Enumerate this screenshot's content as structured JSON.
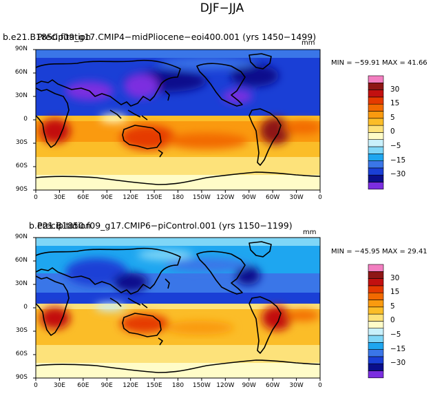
{
  "figure": {
    "title": "DJF−JJA",
    "lat_ticks": [
      "90N",
      "60N",
      "30N",
      "0",
      "30S",
      "60S",
      "90S"
    ],
    "lon_ticks": [
      "0",
      "30E",
      "60E",
      "90E",
      "120E",
      "150E",
      "180",
      "150W",
      "120W",
      "90W",
      "60W",
      "30W",
      "0"
    ],
    "colorbar_labels": [
      "30",
      "15",
      "5",
      "0",
      "−5",
      "−15",
      "−30"
    ],
    "colors": {
      "levels": [
        "#7b2ee0",
        "#0a0f8c",
        "#1a3fd6",
        "#3a76e8",
        "#1ea6f0",
        "#7fd6f7",
        "#c9f0fb",
        "#fffcc8",
        "#fde27a",
        "#fbbd28",
        "#fa9a0f",
        "#f26a00",
        "#e53a00",
        "#c21010",
        "#8e1616",
        "#f27ec0"
      ],
      "land_outline": "#000000"
    },
    "panels": [
      {
        "title_text": "b.e21.B1850.f09_g17.CMIP4−midPliocene−eoi400.001 (yrs 1450−1499)",
        "overlap_text": "Precipitation",
        "stats": "MIN = −59.91 MAX =  41.66",
        "units": "mm"
      },
      {
        "title_text": "b.e21.B1850.f09_g17.CMIP6−piControl.001 (yrs 1150−1199)",
        "overlap_text": "Precipitation",
        "stats": "MIN = −45.95 MAX =  29.41",
        "units": "mm"
      }
    ]
  }
}
